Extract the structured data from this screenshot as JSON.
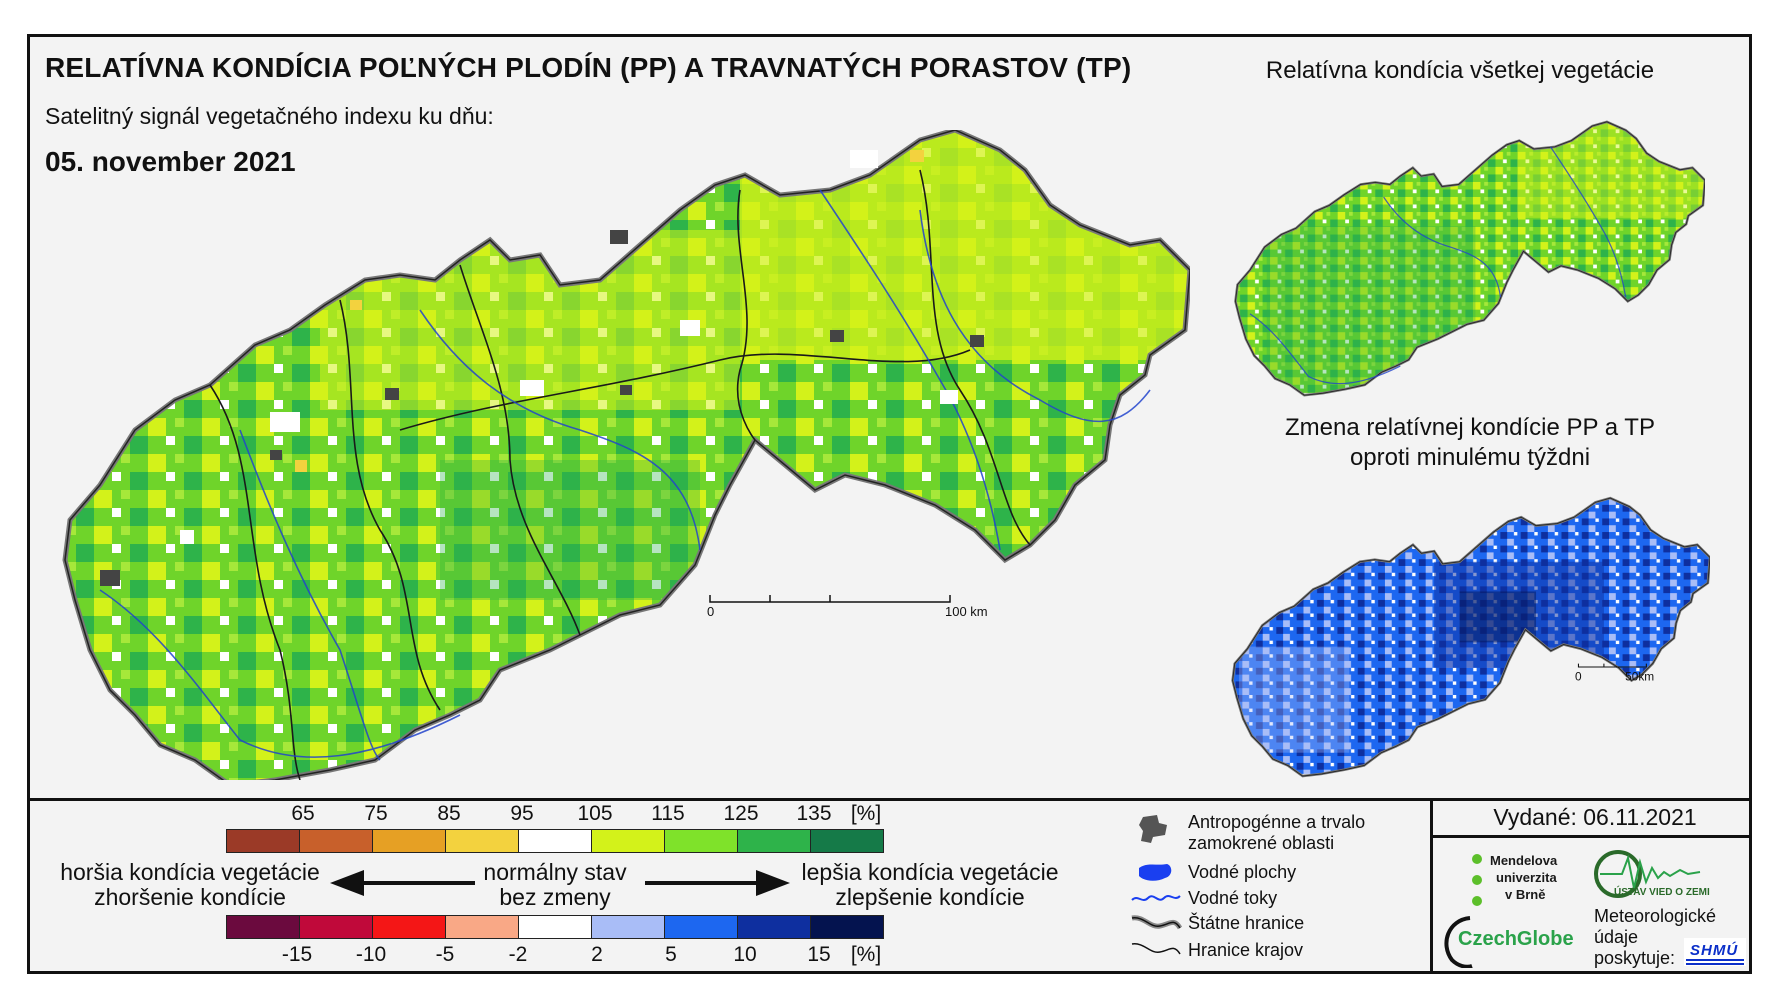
{
  "header": {
    "title": "RELATÍVNA KONDÍCIA POĽNÝCH PLODÍN (PP) A TRAVNATÝCH PORASTOV (TP)",
    "subtitle": "Satelitný signál vegetačného indexu ku dňu:",
    "date": "05. november 2021"
  },
  "side_maps": {
    "all_vegetation_title": "Relatívna kondícia všetkej vegetácie",
    "change_title_line1": "Zmena relatívnej kondície PP a TP",
    "change_title_line2": "oproti minulému týždni"
  },
  "scalebars": {
    "main": {
      "start": "0",
      "end": "100 km"
    },
    "change": {
      "start": "0",
      "end": "50km"
    }
  },
  "legend": {
    "condition": {
      "ticks": [
        "65",
        "75",
        "85",
        "95",
        "105",
        "115",
        "125",
        "135"
      ],
      "unit": "[%]",
      "colors": [
        "#9b3a27",
        "#c8602b",
        "#e6a024",
        "#f3d23e",
        "#ffffff",
        "#d3f21a",
        "#7fe22a",
        "#2eb34a",
        "#157a48"
      ]
    },
    "change": {
      "ticks": [
        "-15",
        "-10",
        "-5",
        "-2",
        "2",
        "5",
        "10",
        "15"
      ],
      "unit": "[%]",
      "colors": [
        "#6b0a3e",
        "#c0093a",
        "#f41616",
        "#f9a886",
        "#ffffff",
        "#a9bdf7",
        "#1d67f0",
        "#0e2f9f",
        "#04134f"
      ]
    },
    "worse_line1": "horšia kondícia vegetácie",
    "worse_line2": "zhoršenie kondície",
    "normal_line1": "normálny stav",
    "normal_line2": "bez zmeny",
    "better_line1": "lepšia kondícia vegetácie",
    "better_line2": "zlepšenie kondície"
  },
  "map_key": {
    "anthropogenic_line1": "Antropogénne a trvalo",
    "anthropogenic_line2": "zamokrené oblasti",
    "water_areas": "Vodné plochy",
    "water_streams": "Vodné toky",
    "state_borders": "Štátne hranice",
    "region_borders": "Hranice krajov"
  },
  "issued": "Vydané: 06.11.2021",
  "logos": {
    "mendel_line1": "Mendelova",
    "mendel_line2": "univerzita",
    "mendel_line3": "v Brně",
    "czechglobe": "CzechGlobe",
    "uvgz": "ÚSTAV VIED O ZEMI",
    "met_line1": "Meteorologické",
    "met_line2": "údaje",
    "met_line3": "poskytuje:",
    "shmu": "SHMÚ"
  },
  "palette": {
    "green_main": "#6fd42a",
    "yellow_green": "#d3f21a",
    "dark_green": "#2eb34a",
    "change_blue": "#1d67f0",
    "change_dark": "#0e2f9f",
    "change_light": "#a9bdf7"
  }
}
